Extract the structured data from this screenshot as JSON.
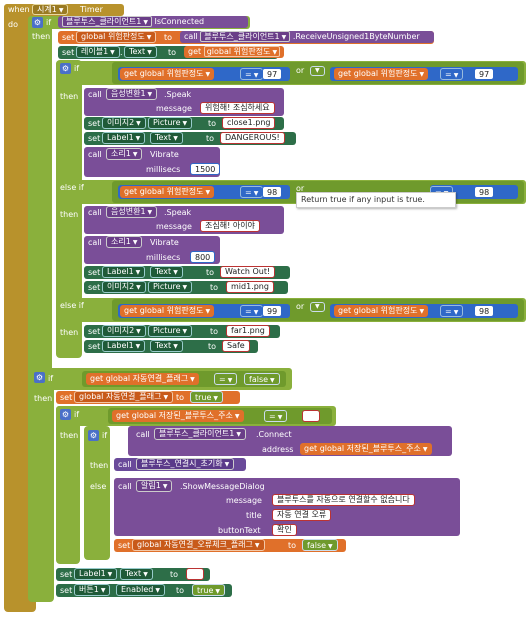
{
  "event": {
    "when": "when",
    "component": "시계1",
    "name": "Timer",
    "do": "do"
  },
  "kw": {
    "if": "if",
    "then": "then",
    "else_if": "else if",
    "else": "else",
    "or": "or",
    "set": "set",
    "to": "to",
    "call": "call",
    "get": "get",
    "eq": "="
  },
  "if1": {
    "component": "블루투스_클라이언트1",
    "prop": "IsConnected"
  },
  "rx": {
    "var": "global 위험판정도",
    "component": "블루투스_클라이언트1",
    "method": ".ReceiveUnsigned1ByteNumber"
  },
  "set_text1": {
    "comp": "레이블1",
    "prop": "Text",
    "value_var": "global 위험판정도"
  },
  "cond1": {
    "left_var": "global 위험판정도",
    "left_num": "97",
    "right_var": "global 위험판정도",
    "right_num": "97"
  },
  "branch1": {
    "speak_comp": "음성변환1",
    "speak_method": ".Speak",
    "message_label": "message",
    "message": "위험해! 조심하세요",
    "pic_comp": "이미지2",
    "pic_prop": "Picture",
    "pic_value": "close1.png",
    "label_comp": "Label1",
    "label_prop": "Text",
    "label_value": "DANGEROUS!",
    "sound_comp": "소리1",
    "vibrate": "Vibrate",
    "millisecs_label": "millisecs",
    "millisecs": "1500"
  },
  "cond2": {
    "left_var": "global 위험판정도",
    "left_num": "98",
    "right_var": "global 위험판정도",
    "right_num": "98"
  },
  "tooltip": "Return true if any input is true.",
  "branch2": {
    "speak_comp": "음성변환1",
    "speak_method": ".Speak",
    "message_label": "message",
    "message": "조심해! 아이야",
    "sound_comp": "소리1",
    "vibrate": "Vibrate",
    "millisecs_label": "millisecs",
    "millisecs": "800",
    "label_comp": "Label1",
    "label_prop": "Text",
    "label_value": "Watch Out!",
    "pic_comp": "이미지2",
    "pic_prop": "Picture",
    "pic_value": "mid1.png"
  },
  "cond3": {
    "left_var": "global 위험판정도",
    "left_num": "99",
    "right_var": "global 위험판정도",
    "right_num": "98"
  },
  "branch3": {
    "pic_comp": "이미지2",
    "pic_prop": "Picture",
    "pic_value": "far1.png",
    "label_comp": "Label1",
    "label_prop": "Text",
    "label_value": "Safe"
  },
  "if2": {
    "var": "global 자동연결_플래그",
    "value": "false"
  },
  "set_flag": {
    "var": "global 자동연결_플래그",
    "value": "true"
  },
  "if3": {
    "var": "global 저장된_블루투스_주소",
    "value": " "
  },
  "if4": {
    "connect_comp": "블루투스_클라이언트1",
    "connect_method": ".Connect",
    "address_label": "address",
    "address_var": "global 저장된_블루투스_주소",
    "proc": "블루투스_연결시_초기화",
    "notifier_comp": "알림1",
    "notifier_method": ".ShowMessageDialog",
    "message_label": "message",
    "message": "블루투스를 자동으로 연결할수 없습니다",
    "title_label": "title",
    "title": "자동 연결 오류",
    "button_label": "buttonText",
    "button": "확인",
    "reset_var": "global 자동연결_오류체크_플래그",
    "reset_value": "false"
  },
  "tail1": {
    "comp": "Label1",
    "prop": "Text",
    "value": " "
  },
  "tail2": {
    "comp": "버튼1",
    "prop": "Enabled",
    "value": "true"
  },
  "colors": {
    "event": "#b8922c",
    "control": "#8ab03c",
    "variable": "#e0702a",
    "component": "#7a4e98",
    "setter": "#2d6e48",
    "text": "#b02a3a",
    "math": "#2f68c8",
    "logic": "#6f9a2c",
    "procedure": "#6a4a9a"
  }
}
